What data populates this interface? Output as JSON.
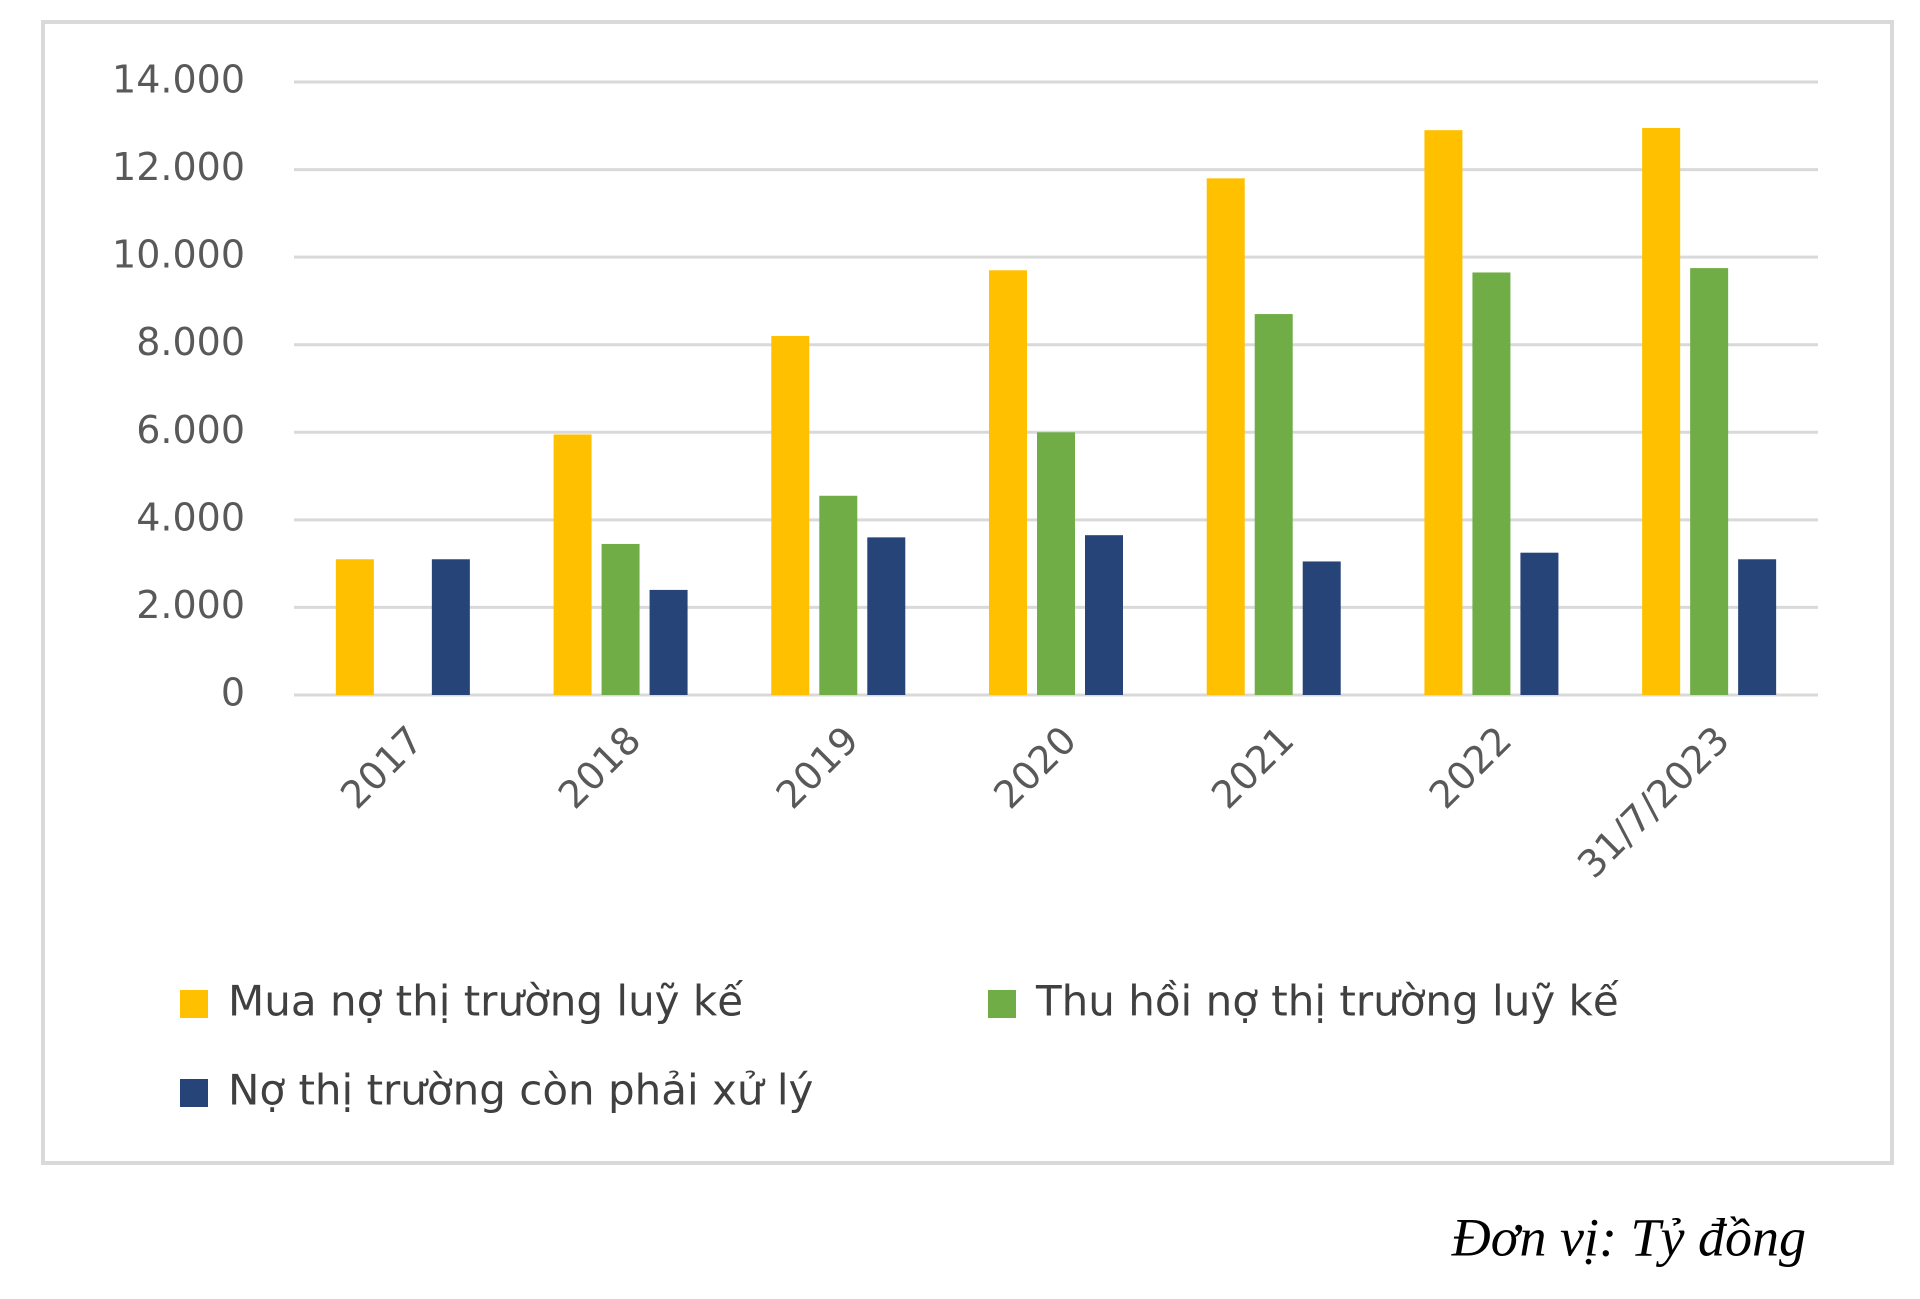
{
  "chart_data": {
    "type": "bar",
    "caption": "Đơn vị: Tỷ đồng",
    "categories": [
      "2017",
      "2018",
      "2019",
      "2020",
      "2021",
      "2022",
      "31/7/2023"
    ],
    "series": [
      {
        "name": "Mua nợ thị trường luỹ kế",
        "color": "#ffc000",
        "values": [
          3100,
          5950,
          8200,
          9700,
          11800,
          12900,
          12950
        ]
      },
      {
        "name": "Thu hồi nợ thị trường luỹ kế",
        "color": "#70ad47",
        "values": [
          null,
          3450,
          4550,
          6000,
          8700,
          9650,
          9750
        ]
      },
      {
        "name": "Nợ thị trường còn phải xử lý",
        "color": "#264478",
        "values": [
          3100,
          2400,
          3600,
          3650,
          3050,
          3250,
          3100
        ]
      }
    ],
    "ylim": [
      0,
      14000
    ],
    "yticks": [
      0,
      {
        "value": 2000,
        "label": "2.000"
      },
      {
        "value": 4000,
        "label": "4.000"
      },
      {
        "value": 6000,
        "label": "6.000"
      },
      {
        "value": 8000,
        "label": "8.000"
      },
      {
        "value": 10000,
        "label": "10.000"
      },
      {
        "value": 12000,
        "label": "12.000"
      },
      {
        "value": 14000,
        "label": "14.000"
      }
    ],
    "grid": true,
    "legend": "bottom"
  }
}
